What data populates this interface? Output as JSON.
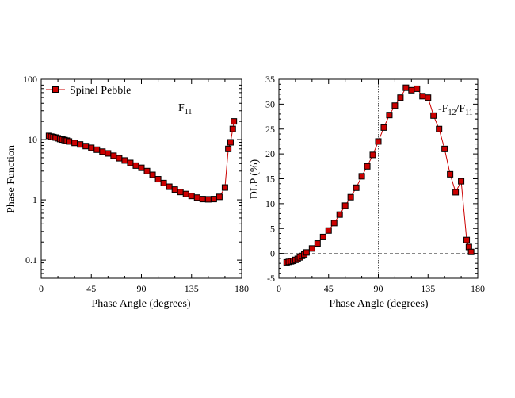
{
  "chart_data": [
    {
      "type": "line",
      "panel": "left",
      "title": "",
      "xlabel": "Phase Angle (degrees)",
      "ylabel": "Phase Function",
      "xlim": [
        0,
        180
      ],
      "ylim": [
        0.05,
        100
      ],
      "yscale": "log",
      "xticks": [
        0,
        45,
        90,
        135,
        180
      ],
      "xtick_labels": [
        "0",
        "45",
        "90",
        "135",
        "180"
      ],
      "yticks": [
        0.1,
        1,
        10,
        100
      ],
      "ytick_labels": [
        "0.1",
        "1",
        "10",
        "100"
      ],
      "legend_position": "top-left",
      "annotation": {
        "text": "F",
        "sub": "11"
      },
      "marker_color": "#cc0000",
      "series": [
        {
          "name": "Spinel Pebble",
          "x": [
            7,
            9,
            11,
            13,
            15,
            17,
            19,
            21,
            23,
            25,
            30,
            35,
            40,
            45,
            50,
            55,
            60,
            65,
            70,
            75,
            80,
            85,
            90,
            95,
            100,
            105,
            110,
            115,
            120,
            125,
            130,
            135,
            140,
            145,
            150,
            155,
            160,
            165,
            168,
            170,
            172,
            173
          ],
          "y": [
            11.5,
            11.2,
            11.0,
            10.8,
            10.5,
            10.2,
            10.0,
            9.8,
            9.6,
            9.3,
            8.8,
            8.3,
            7.8,
            7.3,
            6.8,
            6.3,
            5.9,
            5.4,
            4.9,
            4.5,
            4.1,
            3.7,
            3.4,
            3.0,
            2.6,
            2.2,
            1.9,
            1.65,
            1.48,
            1.35,
            1.25,
            1.16,
            1.09,
            1.03,
            1.02,
            1.03,
            1.12,
            1.6,
            7,
            9,
            15,
            20
          ]
        }
      ]
    },
    {
      "type": "line",
      "panel": "right",
      "title": "",
      "xlabel": "Phase Angle (degrees)",
      "ylabel": "DLP (%)",
      "xlim": [
        0,
        180
      ],
      "ylim": [
        -5,
        35
      ],
      "xticks": [
        0,
        45,
        90,
        135,
        180
      ],
      "xtick_labels": [
        "0",
        "45",
        "90",
        "135",
        "180"
      ],
      "yticks": [
        -5,
        0,
        5,
        10,
        15,
        20,
        25,
        30,
        35
      ],
      "ytick_labels": [
        "-5",
        "0",
        "5",
        "10",
        "15",
        "20",
        "25",
        "30",
        "35"
      ],
      "reference_lines": {
        "x": 90,
        "y": 0
      },
      "annotation": {
        "text": "-F",
        "sub1": "12",
        "mid": "/F",
        "sub2": "11"
      },
      "marker_color": "#cc0000",
      "series": [
        {
          "x": [
            7,
            9,
            11,
            13,
            15,
            17,
            19,
            21,
            23,
            25,
            30,
            35,
            40,
            45,
            50,
            55,
            60,
            65,
            70,
            75,
            80,
            85,
            90,
            95,
            100,
            105,
            110,
            115,
            120,
            125,
            130,
            135,
            140,
            145,
            150,
            155,
            160,
            165,
            170,
            172,
            174
          ],
          "y": [
            -1.8,
            -1.7,
            -1.6,
            -1.5,
            -1.3,
            -1.1,
            -0.8,
            -0.5,
            -0.2,
            0.2,
            1.0,
            2.0,
            3.3,
            4.6,
            6.1,
            7.8,
            9.6,
            11.3,
            13.2,
            15.5,
            17.5,
            19.8,
            22.5,
            25.3,
            27.8,
            29.7,
            31.3,
            33.3,
            32.8,
            33.1,
            31.6,
            31.3,
            27.7,
            25.0,
            21.0,
            15.9,
            12.3,
            14.5,
            2.7,
            1.3,
            0.3
          ]
        }
      ]
    }
  ]
}
